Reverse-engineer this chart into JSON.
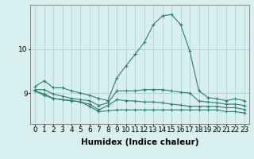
{
  "x": [
    0,
    1,
    2,
    3,
    4,
    5,
    6,
    7,
    8,
    9,
    10,
    11,
    12,
    13,
    14,
    15,
    16,
    17,
    18,
    19,
    20,
    21,
    22,
    23
  ],
  "line1": [
    9.15,
    9.28,
    9.12,
    9.12,
    9.05,
    9.0,
    8.95,
    8.88,
    8.83,
    9.35,
    9.62,
    9.88,
    10.15,
    10.55,
    10.75,
    10.78,
    10.55,
    9.95,
    9.05,
    8.9,
    8.87,
    8.83,
    8.87,
    8.83
  ],
  "line2": [
    9.08,
    9.08,
    8.98,
    8.93,
    8.88,
    8.85,
    8.83,
    8.72,
    8.78,
    9.05,
    9.05,
    9.05,
    9.08,
    9.08,
    9.08,
    9.05,
    9.02,
    9.0,
    8.82,
    8.8,
    8.78,
    8.75,
    8.75,
    8.72
  ],
  "line3": [
    9.05,
    8.98,
    8.88,
    8.85,
    8.83,
    8.8,
    8.75,
    8.62,
    8.72,
    8.85,
    8.83,
    8.82,
    8.8,
    8.8,
    8.78,
    8.75,
    8.73,
    8.7,
    8.7,
    8.7,
    8.7,
    8.67,
    8.67,
    8.63
  ],
  "line4": [
    9.05,
    8.95,
    8.88,
    8.85,
    8.83,
    8.8,
    8.7,
    8.58,
    8.6,
    8.62,
    8.62,
    8.62,
    8.62,
    8.62,
    8.62,
    8.62,
    8.62,
    8.62,
    8.62,
    8.62,
    8.62,
    8.58,
    8.58,
    8.55
  ],
  "line_color": "#2e7d6e",
  "bg_color": "#d8eff0",
  "grid_color": "#aacfcf",
  "yticks": [
    9,
    10
  ],
  "ylim": [
    8.3,
    11.0
  ],
  "xlim": [
    -0.5,
    23.5
  ],
  "xlabel": "Humidex (Indice chaleur)",
  "xlabel_fontsize": 7.5,
  "tick_fontsize": 6.5
}
